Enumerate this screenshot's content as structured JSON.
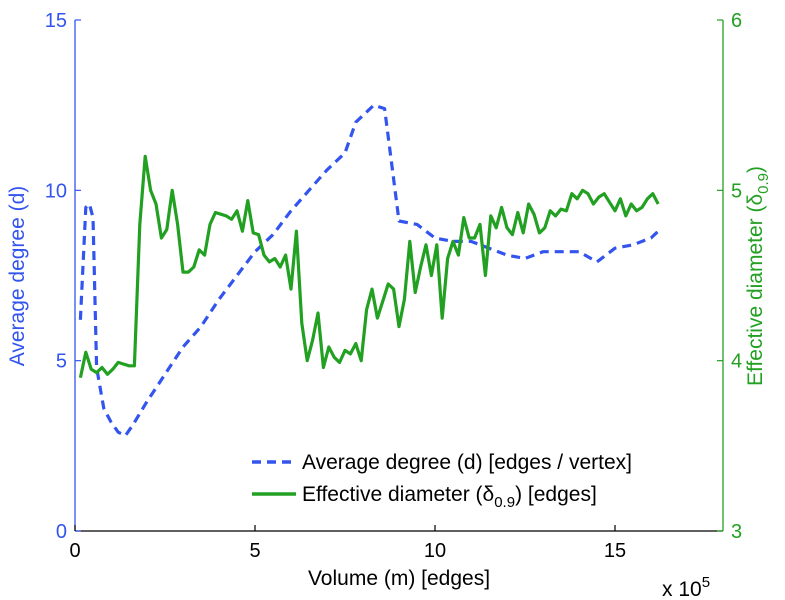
{
  "chart_data": {
    "type": "line",
    "xlabel": "Volume (m) [edges]",
    "x_multiplier": "x 10",
    "x_multiplier_exp": "5",
    "xlim": [
      0,
      18
    ],
    "x_ticks": [
      "0",
      "5",
      "10",
      "15"
    ],
    "left_axis": {
      "label": "Average degree (d)",
      "ylim": [
        0,
        15
      ],
      "ticks": [
        "0",
        "5",
        "10",
        "15"
      ],
      "color": "#3355ee"
    },
    "right_axis": {
      "label": "Effective diameter (δ",
      "label_sub": "0.9",
      "label_end": ")",
      "ylim": [
        3,
        6
      ],
      "ticks": [
        "3",
        "4",
        "5",
        "6"
      ],
      "color": "#22a022"
    },
    "legend": {
      "position": "lower-right",
      "entries": [
        {
          "text": "Average degree (d) [edges / vertex]"
        },
        {
          "pre": "Effective diameter (δ",
          "sub": "0.9",
          "post": ") [edges]"
        }
      ]
    },
    "series": [
      {
        "name": "Average degree (d) [edges / vertex]",
        "axis": "left",
        "style": "dashed",
        "color": "#3355ee",
        "x": [
          0.15,
          0.3,
          0.4,
          0.5,
          0.55,
          0.6,
          0.8,
          1.0,
          1.2,
          1.4,
          1.6,
          2.0,
          2.5,
          3.0,
          3.5,
          4.0,
          4.5,
          5.0,
          5.5,
          6.0,
          6.5,
          7.0,
          7.5,
          7.8,
          8.0,
          8.3,
          8.6,
          9.0,
          9.5,
          10.0,
          10.5,
          11.0,
          11.5,
          12.0,
          12.5,
          13.0,
          13.5,
          14.0,
          14.5,
          15.0,
          15.5,
          16.0,
          16.3
        ],
        "values": [
          6.2,
          9.5,
          9.6,
          9.2,
          7.0,
          4.8,
          3.6,
          3.2,
          2.9,
          2.8,
          3.1,
          3.8,
          4.6,
          5.4,
          6.0,
          6.8,
          7.5,
          8.2,
          8.7,
          9.4,
          10.0,
          10.6,
          11.1,
          12.0,
          12.2,
          12.5,
          12.4,
          9.1,
          9.0,
          8.6,
          8.5,
          8.5,
          8.3,
          8.1,
          8.0,
          8.2,
          8.2,
          8.2,
          7.9,
          8.3,
          8.4,
          8.6,
          8.9
        ]
      },
      {
        "name": "Effective diameter (δ 0.9) [edges]",
        "axis": "right",
        "style": "solid",
        "color": "#22a022",
        "x": [
          0.15,
          0.3,
          0.45,
          0.6,
          0.75,
          0.9,
          1.05,
          1.2,
          1.35,
          1.5,
          1.65,
          1.8,
          1.95,
          2.1,
          2.25,
          2.4,
          2.55,
          2.7,
          2.85,
          3.0,
          3.15,
          3.3,
          3.45,
          3.6,
          3.75,
          3.9,
          4.05,
          4.2,
          4.35,
          4.5,
          4.65,
          4.8,
          4.95,
          5.1,
          5.25,
          5.4,
          5.55,
          5.7,
          5.85,
          6.0,
          6.15,
          6.3,
          6.45,
          6.6,
          6.75,
          6.9,
          7.05,
          7.2,
          7.35,
          7.5,
          7.65,
          7.8,
          7.95,
          8.1,
          8.25,
          8.4,
          8.55,
          8.7,
          8.85,
          9.0,
          9.15,
          9.3,
          9.45,
          9.6,
          9.75,
          9.9,
          10.05,
          10.2,
          10.35,
          10.5,
          10.65,
          10.8,
          10.95,
          11.1,
          11.25,
          11.4,
          11.55,
          11.7,
          11.85,
          12.0,
          12.15,
          12.3,
          12.45,
          12.6,
          12.75,
          12.9,
          13.05,
          13.2,
          13.35,
          13.5,
          13.65,
          13.8,
          13.95,
          14.1,
          14.25,
          14.4,
          14.55,
          14.7,
          14.85,
          15.0,
          15.15,
          15.3,
          15.45,
          15.6,
          15.75,
          15.9,
          16.05,
          16.2
        ],
        "values": [
          3.9,
          4.05,
          3.95,
          3.93,
          3.96,
          3.92,
          3.95,
          3.99,
          3.98,
          3.97,
          3.97,
          4.8,
          5.2,
          5.0,
          4.92,
          4.72,
          4.77,
          5.0,
          4.8,
          4.52,
          4.52,
          4.55,
          4.65,
          4.62,
          4.8,
          4.87,
          4.86,
          4.85,
          4.83,
          4.88,
          4.76,
          4.94,
          4.75,
          4.74,
          4.62,
          4.58,
          4.6,
          4.55,
          4.62,
          4.42,
          4.76,
          4.22,
          4.0,
          4.12,
          4.28,
          3.96,
          4.08,
          4.02,
          3.99,
          4.06,
          4.04,
          4.1,
          4.0,
          4.3,
          4.42,
          4.25,
          4.35,
          4.45,
          4.42,
          4.2,
          4.36,
          4.7,
          4.4,
          4.55,
          4.68,
          4.5,
          4.68,
          4.25,
          4.6,
          4.7,
          4.62,
          4.84,
          4.72,
          4.72,
          4.8,
          4.5,
          4.85,
          4.78,
          4.9,
          4.78,
          4.74,
          4.87,
          4.75,
          4.92,
          4.86,
          4.75,
          4.78,
          4.88,
          4.85,
          4.89,
          4.88,
          4.98,
          4.95,
          5.0,
          4.98,
          4.92,
          4.96,
          4.98,
          4.93,
          4.88,
          4.95,
          4.85,
          4.92,
          4.88,
          4.9,
          4.95,
          4.98,
          4.92
        ]
      }
    ]
  }
}
